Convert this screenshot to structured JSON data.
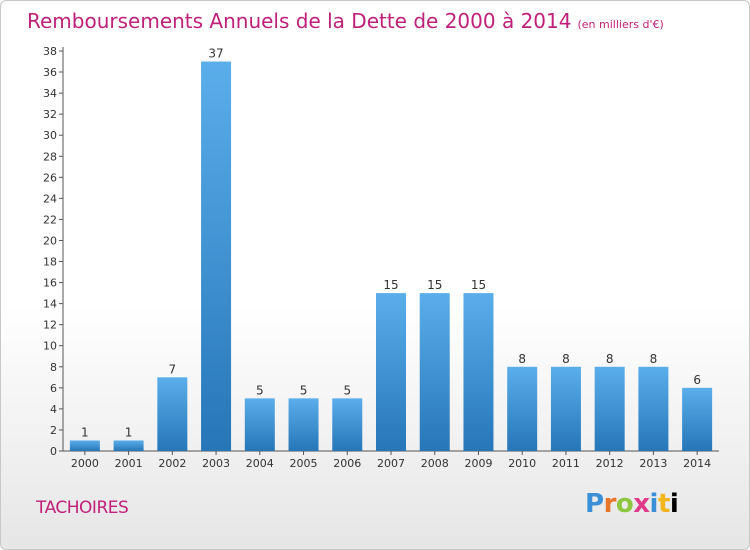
{
  "header": {
    "title": "Remboursements Annuels de la Dette de 2000 à 2014",
    "subtitle": "(en milliers d'€)"
  },
  "footer": {
    "commune": "TACHOIRES",
    "logo_text": "Proxiti"
  },
  "colors": {
    "title": "#c0207a",
    "bar_light": "#5aaeea",
    "bar_dark": "#2676b8"
  },
  "chart_data": {
    "type": "bar",
    "title": "Remboursements Annuels de la Dette de 2000 à 2014",
    "subtitle": "(en milliers d'€)",
    "categories": [
      "2000",
      "2001",
      "2002",
      "2003",
      "2004",
      "2005",
      "2006",
      "2007",
      "2008",
      "2009",
      "2010",
      "2011",
      "2012",
      "2013",
      "2014"
    ],
    "values": [
      1,
      1,
      7,
      37,
      5,
      5,
      5,
      15,
      15,
      15,
      8,
      8,
      8,
      8,
      6
    ],
    "ylim": [
      0,
      38
    ],
    "yticks": [
      0,
      2,
      4,
      6,
      8,
      10,
      12,
      14,
      16,
      18,
      20,
      22,
      24,
      26,
      28,
      30,
      32,
      34,
      36,
      38
    ],
    "grid": false,
    "data_labels": true
  }
}
